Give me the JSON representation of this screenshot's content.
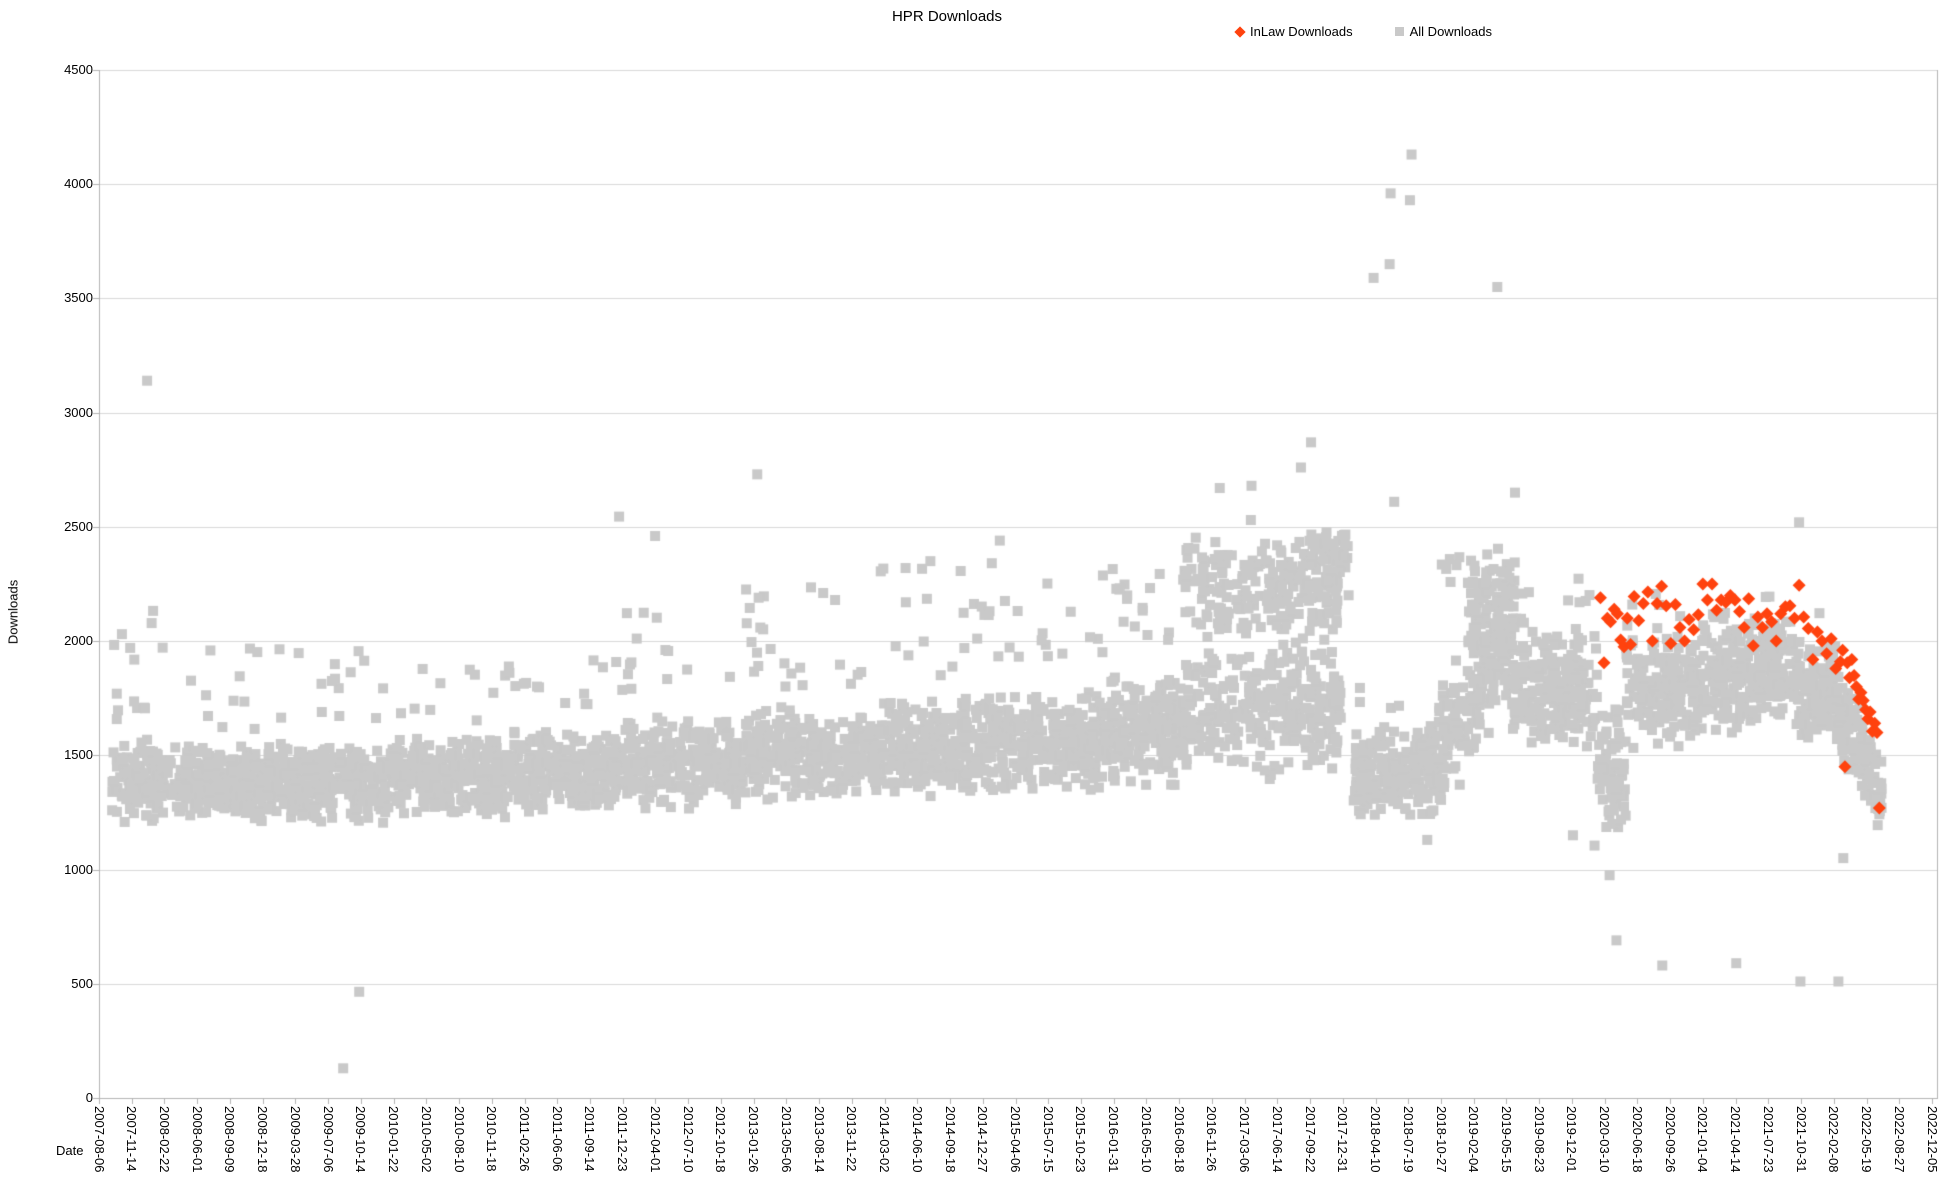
{
  "chart_data": {
    "type": "scatter",
    "title": "HPR Downloads",
    "xlabel": "Date",
    "ylabel": "Downloads",
    "ylim": [
      0,
      4500
    ],
    "y_ticks": [
      0,
      500,
      1000,
      1500,
      2000,
      2500,
      3000,
      3500,
      4000,
      4500
    ],
    "grid": "horizontal",
    "legend_position": "top",
    "colors": {
      "inlaw": "#ff420e",
      "all": "#c9c9c9",
      "grid": "#d9d9d9",
      "axis": "#b3b3b3",
      "text": "#000000"
    },
    "legend": [
      {
        "label": "InLaw Downloads",
        "marker": "diamond",
        "color": "#ff420e"
      },
      {
        "label": "All Downloads",
        "marker": "square",
        "color": "#c9c9c9"
      }
    ],
    "x_axis_start_date": "2007-08-06",
    "x_tick_interval_days": 100,
    "x_ticks": [
      "2007-08-06",
      "2007-11-14",
      "2008-02-22",
      "2008-06-01",
      "2008-09-09",
      "2008-12-18",
      "2009-03-28",
      "2009-07-06",
      "2009-10-14",
      "2010-01-22",
      "2010-05-02",
      "2010-08-10",
      "2010-11-18",
      "2011-02-26",
      "2011-06-06",
      "2011-09-14",
      "2011-12-23",
      "2012-04-01",
      "2012-07-10",
      "2012-10-18",
      "2013-01-26",
      "2013-05-06",
      "2013-08-14",
      "2013-11-22",
      "2014-03-02",
      "2014-06-10",
      "2014-09-18",
      "2014-12-27",
      "2015-04-06",
      "2015-07-15",
      "2015-10-23",
      "2016-01-31",
      "2016-05-10",
      "2016-08-18",
      "2016-11-26",
      "2017-03-06",
      "2017-06-14",
      "2017-09-22",
      "2017-12-31",
      "2018-04-10",
      "2018-07-19",
      "2018-10-27",
      "2019-02-04",
      "2019-05-15",
      "2019-08-23",
      "2019-12-01",
      "2020-03-10",
      "2020-06-18",
      "2020-09-26",
      "2021-01-04",
      "2021-04-14",
      "2021-07-23",
      "2021-10-31",
      "2022-02-08",
      "2022-05-19",
      "2022-08-27",
      "2022-12-05"
    ],
    "series": [
      {
        "name": "All Downloads",
        "marker": "square",
        "color": "#c9c9c9",
        "representation": "density_bands_plus_outliers",
        "bands": [
          {
            "from": "2007-09-15",
            "to": "2008-02-01",
            "n": 120,
            "center": 1400,
            "spread": 140,
            "tail_frac": 0.1,
            "tail_min": 1650,
            "tail_max": 2150
          },
          {
            "from": "2008-02-01",
            "to": "2009-01-01",
            "n": 300,
            "center": 1380,
            "spread": 120,
            "tail_frac": 0.05,
            "tail_min": 1600,
            "tail_max": 2000
          },
          {
            "from": "2009-01-01",
            "to": "2010-01-01",
            "n": 300,
            "center": 1380,
            "spread": 125,
            "tail_frac": 0.04,
            "tail_min": 1600,
            "tail_max": 1990
          },
          {
            "from": "2010-01-01",
            "to": "2011-01-01",
            "n": 300,
            "center": 1400,
            "spread": 125,
            "tail_frac": 0.04,
            "tail_min": 1650,
            "tail_max": 1900
          },
          {
            "from": "2011-01-01",
            "to": "2012-01-01",
            "n": 300,
            "center": 1430,
            "spread": 130,
            "tail_frac": 0.05,
            "tail_min": 1700,
            "tail_max": 1980
          },
          {
            "from": "2012-01-01",
            "to": "2013-01-01",
            "n": 300,
            "center": 1460,
            "spread": 140,
            "tail_frac": 0.06,
            "tail_min": 1750,
            "tail_max": 2150
          },
          {
            "from": "2013-01-01",
            "to": "2014-01-01",
            "n": 300,
            "center": 1500,
            "spread": 145,
            "tail_frac": 0.07,
            "tail_min": 1800,
            "tail_max": 2250
          },
          {
            "from": "2014-01-01",
            "to": "2015-01-01",
            "n": 300,
            "center": 1530,
            "spread": 150,
            "tail_frac": 0.08,
            "tail_min": 1850,
            "tail_max": 2330
          },
          {
            "from": "2015-01-01",
            "to": "2016-01-01",
            "n": 300,
            "center": 1560,
            "spread": 155,
            "tail_frac": 0.08,
            "tail_min": 1870,
            "tail_max": 2350
          },
          {
            "from": "2016-01-01",
            "to": "2016-09-01",
            "n": 240,
            "center": 1600,
            "spread": 170,
            "tail_frac": 0.08,
            "tail_min": 2000,
            "tail_max": 2350
          },
          {
            "from": "2016-09-01",
            "to": "2017-12-25",
            "n": 330,
            "center": 1700,
            "spread": 220,
            "tail_frac": 0.04,
            "tail_min": 2150,
            "tail_max": 2420
          },
          {
            "from": "2016-09-01",
            "to": "2018-01-20",
            "n": 200,
            "center": 2230,
            "spread": 170
          },
          {
            "from": "2017-09-15",
            "to": "2018-01-15",
            "n": 55,
            "center": 2370,
            "spread": 90
          },
          {
            "from": "2018-02-01",
            "to": "2018-10-15",
            "n": 220,
            "center": 1430,
            "spread": 140,
            "tail_frac": 0.02,
            "tail_min": 1700,
            "tail_max": 1800
          },
          {
            "from": "2018-10-15",
            "to": "2019-06-01",
            "n": 200,
            "center": 1500,
            "center_end": 2050,
            "spread": 200,
            "tail_frac": 0.04,
            "tail_min": 2250,
            "tail_max": 2420
          },
          {
            "from": "2019-01-15",
            "to": "2019-06-15",
            "n": 90,
            "center": 2150,
            "spread": 170
          },
          {
            "from": "2019-06-01",
            "to": "2020-02-15",
            "n": 220,
            "center": 1850,
            "center_end": 1750,
            "spread": 200,
            "tail_frac": 0.03,
            "tail_min": 2150,
            "tail_max": 2300
          },
          {
            "from": "2020-02-15",
            "to": "2020-05-15",
            "n": 70,
            "center": 1450,
            "spread": 200
          },
          {
            "from": "2020-05-15",
            "to": "2021-01-01",
            "n": 200,
            "center": 1800,
            "spread": 190,
            "tail_frac": 0.03,
            "tail_min": 2100,
            "tail_max": 2250
          },
          {
            "from": "2021-01-01",
            "to": "2021-10-01",
            "n": 240,
            "center": 1850,
            "spread": 180,
            "tail_frac": 0.03,
            "tail_min": 2100,
            "tail_max": 2250
          },
          {
            "from": "2021-10-01",
            "to": "2022-02-15",
            "n": 120,
            "center": 1800,
            "spread": 170,
            "tail_frac": 0.02,
            "tail_min": 2050,
            "tail_max": 2150
          },
          {
            "from": "2022-02-15",
            "to": "2022-07-05",
            "n": 120,
            "center": 1700,
            "center_end": 1350,
            "spread": 130
          }
        ],
        "outliers": [
          [
            "2007-12-31",
            3140
          ],
          [
            "2009-08-21",
            130
          ],
          [
            "2009-10-09",
            465
          ],
          [
            "2011-12-12",
            2545
          ],
          [
            "2012-03-31",
            2460
          ],
          [
            "2013-02-06",
            2730
          ],
          [
            "2014-07-20",
            2350
          ],
          [
            "2015-02-17",
            2440
          ],
          [
            "2016-12-20",
            2670
          ],
          [
            "2017-03-25",
            2530
          ],
          [
            "2017-03-27",
            2680
          ],
          [
            "2017-08-25",
            2760
          ],
          [
            "2017-09-25",
            2870
          ],
          [
            "2018-04-04",
            3590
          ],
          [
            "2018-05-23",
            3650
          ],
          [
            "2018-05-26",
            3960
          ],
          [
            "2018-06-06",
            2610
          ],
          [
            "2018-07-24",
            3930
          ],
          [
            "2018-07-29",
            4130
          ],
          [
            "2018-09-15",
            1130
          ],
          [
            "2019-04-17",
            3550
          ],
          [
            "2019-06-10",
            2650
          ],
          [
            "2019-12-04",
            1150
          ],
          [
            "2020-02-08",
            1105
          ],
          [
            "2020-03-25",
            975
          ],
          [
            "2020-04-15",
            690
          ],
          [
            "2020-09-02",
            580
          ],
          [
            "2021-04-16",
            590
          ],
          [
            "2021-10-25",
            2520
          ],
          [
            "2021-10-29",
            510
          ],
          [
            "2022-02-22",
            510
          ],
          [
            "2022-03-09",
            1050
          ]
        ]
      },
      {
        "name": "InLaw Downloads",
        "marker": "diamond",
        "color": "#ff420e",
        "points": [
          [
            "2020-02-26",
            2190
          ],
          [
            "2020-03-08",
            1905
          ],
          [
            "2020-03-18",
            2100
          ],
          [
            "2020-03-28",
            2085
          ],
          [
            "2020-04-08",
            2140
          ],
          [
            "2020-04-18",
            2120
          ],
          [
            "2020-04-28",
            2005
          ],
          [
            "2020-05-08",
            1975
          ],
          [
            "2020-05-18",
            2100
          ],
          [
            "2020-05-28",
            1985
          ],
          [
            "2020-06-08",
            2195
          ],
          [
            "2020-06-22",
            2090
          ],
          [
            "2020-07-06",
            2165
          ],
          [
            "2020-07-20",
            2215
          ],
          [
            "2020-08-03",
            2000
          ],
          [
            "2020-08-17",
            2165
          ],
          [
            "2020-08-31",
            2240
          ],
          [
            "2020-09-14",
            2155
          ],
          [
            "2020-09-28",
            1990
          ],
          [
            "2020-10-12",
            2160
          ],
          [
            "2020-10-26",
            2060
          ],
          [
            "2020-11-09",
            2000
          ],
          [
            "2020-11-23",
            2095
          ],
          [
            "2020-12-07",
            2050
          ],
          [
            "2020-12-21",
            2115
          ],
          [
            "2021-01-04",
            2250
          ],
          [
            "2021-01-18",
            2180
          ],
          [
            "2021-02-01",
            2250
          ],
          [
            "2021-02-15",
            2135
          ],
          [
            "2021-03-01",
            2180
          ],
          [
            "2021-03-15",
            2170
          ],
          [
            "2021-03-29",
            2200
          ],
          [
            "2021-04-12",
            2180
          ],
          [
            "2021-04-26",
            2130
          ],
          [
            "2021-05-10",
            2060
          ],
          [
            "2021-05-24",
            2185
          ],
          [
            "2021-06-07",
            1980
          ],
          [
            "2021-06-21",
            2105
          ],
          [
            "2021-07-05",
            2060
          ],
          [
            "2021-07-19",
            2120
          ],
          [
            "2021-08-02",
            2085
          ],
          [
            "2021-08-16",
            2000
          ],
          [
            "2021-08-30",
            2120
          ],
          [
            "2021-09-13",
            2150
          ],
          [
            "2021-09-27",
            2155
          ],
          [
            "2021-10-11",
            2100
          ],
          [
            "2021-10-25",
            2245
          ],
          [
            "2021-11-08",
            2105
          ],
          [
            "2021-11-22",
            2055
          ],
          [
            "2021-12-06",
            1920
          ],
          [
            "2021-12-20",
            2040
          ],
          [
            "2022-01-03",
            2000
          ],
          [
            "2022-01-17",
            1945
          ],
          [
            "2022-01-31",
            2010
          ],
          [
            "2022-02-14",
            1880
          ],
          [
            "2022-02-28",
            1910
          ],
          [
            "2022-03-07",
            1960
          ],
          [
            "2022-03-14",
            1450
          ],
          [
            "2022-03-21",
            1905
          ],
          [
            "2022-03-28",
            1840
          ],
          [
            "2022-04-04",
            1920
          ],
          [
            "2022-04-11",
            1850
          ],
          [
            "2022-04-18",
            1800
          ],
          [
            "2022-04-25",
            1745
          ],
          [
            "2022-05-02",
            1775
          ],
          [
            "2022-05-09",
            1740
          ],
          [
            "2022-05-16",
            1700
          ],
          [
            "2022-05-23",
            1660
          ],
          [
            "2022-05-30",
            1690
          ],
          [
            "2022-06-06",
            1605
          ],
          [
            "2022-06-13",
            1640
          ],
          [
            "2022-06-20",
            1600
          ],
          [
            "2022-06-27",
            1270
          ]
        ]
      }
    ]
  }
}
